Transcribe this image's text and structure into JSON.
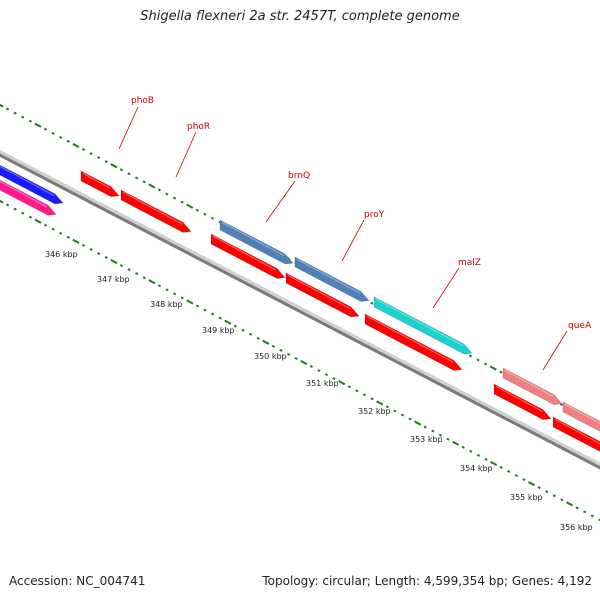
{
  "title": "Shigella flexneri 2a str. 2457T, complete genome",
  "footer": {
    "accession": "Accession: NC_004741",
    "stats": "Topology: circular; Length: 4,599,354 bp; Genes: 4,192"
  },
  "colors": {
    "backbone": "#7a7a7a",
    "tick": "#1f7a1f",
    "label_line": "#cc0000",
    "label_text": "#cc0000",
    "cds_red": "#ff0000",
    "blue": "#1a1aff",
    "magenta": "#ff1a8c",
    "steel": "#4f81b8",
    "cyan": "#19d3d3",
    "salmon": "#f08080"
  },
  "kbp_labels": [
    "346 kbp",
    "347 kbp",
    "348 kbp",
    "349 kbp",
    "350 kbp",
    "351 kbp",
    "352 kbp",
    "353 kbp",
    "354 kbp",
    "355 kbp",
    "356 kbp"
  ],
  "genes": [
    {
      "name": "phoB",
      "color": "cds_red"
    },
    {
      "name": "phoR",
      "color": "cds_red"
    },
    {
      "name": "brnQ",
      "color": "steel"
    },
    {
      "name": "proY",
      "color": "steel"
    },
    {
      "name": "malZ",
      "color": "cyan"
    },
    {
      "name": "queA",
      "color": "salmon"
    }
  ]
}
